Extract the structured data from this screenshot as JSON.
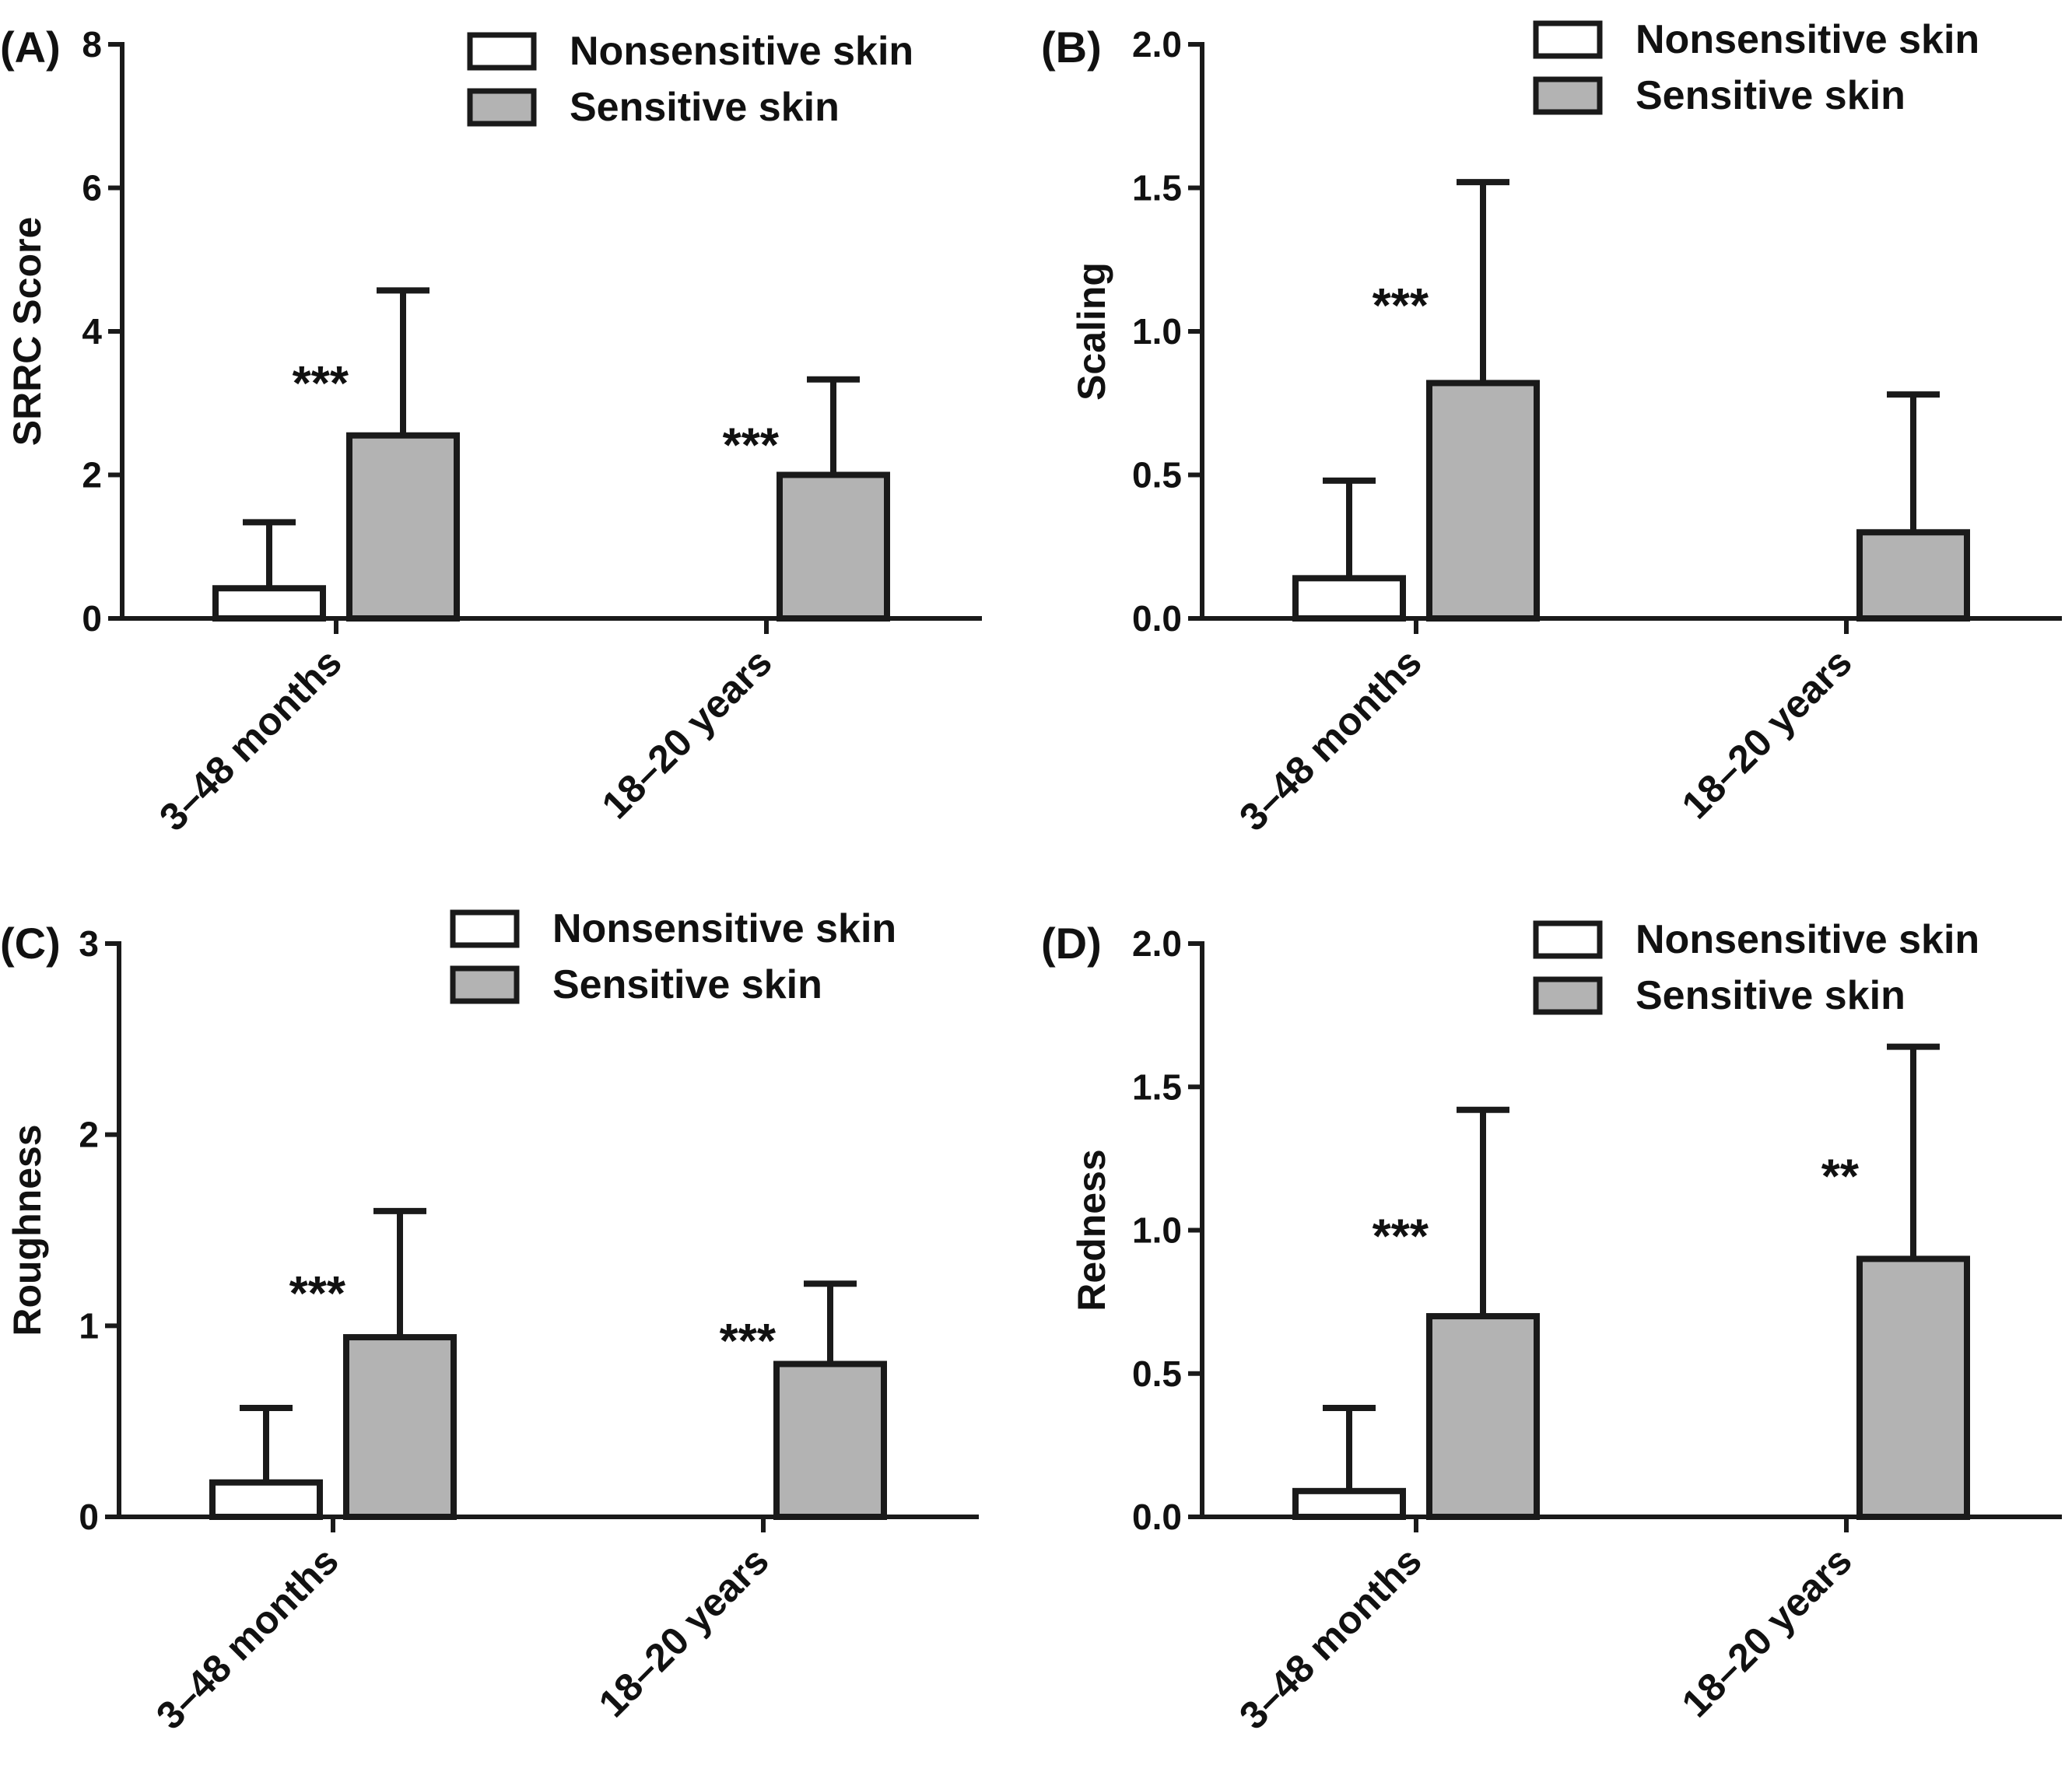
{
  "colors": {
    "nonsensitive": "#ffffff",
    "sensitive": "#b3b3b3",
    "axis": "#1a1a1a"
  },
  "chart_data": [
    {
      "type": "bar",
      "panel_label": "(A)",
      "ylabel": "SRRC Score",
      "xlabel": "",
      "ylim": [
        0,
        8
      ],
      "yticks": [
        "0",
        "2",
        "4",
        "6",
        "8"
      ],
      "categories": [
        "3–48 months",
        "18–20 years"
      ],
      "legend": [
        "Nonsensitive skin",
        "Sensitive skin"
      ],
      "series": [
        {
          "name": "Nonsensitive skin",
          "values": [
            0.42,
            0
          ],
          "errors": [
            0.92,
            0
          ]
        },
        {
          "name": "Sensitive skin",
          "values": [
            2.55,
            2.0
          ],
          "errors": [
            2.02,
            1.33
          ]
        }
      ],
      "annotations": [
        "***",
        "***"
      ]
    },
    {
      "type": "bar",
      "panel_label": "(B)",
      "ylabel": "Scaling",
      "xlabel": "",
      "ylim": [
        0,
        2.0
      ],
      "yticks": [
        "0.0",
        "0.5",
        "1.0",
        "1.5",
        "2.0"
      ],
      "categories": [
        "3–48 months",
        "18–20 years"
      ],
      "legend": [
        "Nonsensitive skin",
        "Sensitive skin"
      ],
      "series": [
        {
          "name": "Nonsensitive skin",
          "values": [
            0.14,
            0
          ],
          "errors": [
            0.34,
            0
          ]
        },
        {
          "name": "Sensitive skin",
          "values": [
            0.82,
            0.3
          ],
          "errors": [
            0.7,
            0.48
          ]
        }
      ],
      "annotations": [
        "***",
        ""
      ]
    },
    {
      "type": "bar",
      "panel_label": "(C)",
      "ylabel": "Roughness",
      "xlabel": "",
      "ylim": [
        0,
        3
      ],
      "yticks": [
        "0",
        "1",
        "2",
        "3"
      ],
      "categories": [
        "3–48 months",
        "18–20 years"
      ],
      "legend": [
        "Nonsensitive skin",
        "Sensitive skin"
      ],
      "series": [
        {
          "name": "Nonsensitive skin",
          "values": [
            0.18,
            0
          ],
          "errors": [
            0.39,
            0
          ]
        },
        {
          "name": "Sensitive skin",
          "values": [
            0.94,
            0.8
          ],
          "errors": [
            0.66,
            0.42
          ]
        }
      ],
      "annotations": [
        "***",
        "***"
      ]
    },
    {
      "type": "bar",
      "panel_label": "(D)",
      "ylabel": "Redness",
      "xlabel": "",
      "ylim": [
        0,
        2.0
      ],
      "yticks": [
        "0.0",
        "0.5",
        "1.0",
        "1.5",
        "2.0"
      ],
      "categories": [
        "3–48 months",
        "18–20 years"
      ],
      "legend": [
        "Nonsensitive skin",
        "Sensitive skin"
      ],
      "series": [
        {
          "name": "Nonsensitive skin",
          "values": [
            0.09,
            0
          ],
          "errors": [
            0.29,
            0
          ]
        },
        {
          "name": "Sensitive skin",
          "values": [
            0.7,
            0.9
          ],
          "errors": [
            0.72,
            0.74
          ]
        }
      ],
      "annotations": [
        "***",
        "**"
      ]
    }
  ]
}
